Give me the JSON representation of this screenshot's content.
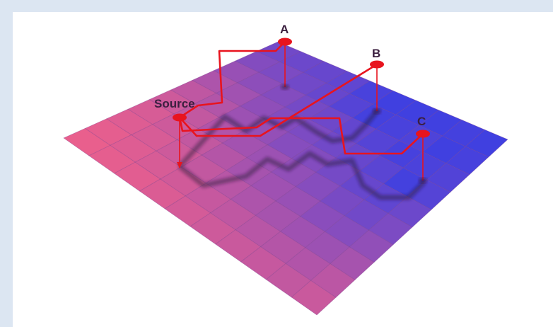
{
  "colors": {
    "page_background": "#dce6f2",
    "canvas_background": "#ffffff",
    "path_line": "#e8141e",
    "marker": "#e8141e",
    "label_text": "#3b1f3f",
    "low_cost_cell": "#f0608a",
    "high_cost_cell": "#4040e0"
  },
  "labels": {
    "source": "Source",
    "point_a": "A",
    "point_b": "B",
    "point_c": "C"
  },
  "grid": {
    "rows": 10,
    "cols": 10,
    "cost_values": [
      [
        0.72,
        0.75,
        0.78,
        0.82,
        0.95,
        1.0,
        1.0,
        1.0,
        0.98,
        1.0
      ],
      [
        0.62,
        0.66,
        0.72,
        0.78,
        0.88,
        0.98,
        0.95,
        0.92,
        1.0,
        0.96
      ],
      [
        0.5,
        0.56,
        0.62,
        0.7,
        0.74,
        0.8,
        0.88,
        0.96,
        0.94,
        0.9
      ],
      [
        0.38,
        0.45,
        0.55,
        0.62,
        0.66,
        0.72,
        0.78,
        0.85,
        0.98,
        0.88
      ],
      [
        0.28,
        0.35,
        0.48,
        0.52,
        0.6,
        0.62,
        0.7,
        0.78,
        0.82,
        0.75
      ],
      [
        0.2,
        0.26,
        0.36,
        0.44,
        0.48,
        0.54,
        0.6,
        0.68,
        0.72,
        0.66
      ],
      [
        0.14,
        0.2,
        0.26,
        0.34,
        0.42,
        0.46,
        0.5,
        0.58,
        0.6,
        0.54
      ],
      [
        0.1,
        0.14,
        0.2,
        0.26,
        0.32,
        0.38,
        0.42,
        0.46,
        0.48,
        0.42
      ],
      [
        0.06,
        0.1,
        0.14,
        0.18,
        0.24,
        0.28,
        0.32,
        0.34,
        0.36,
        0.3
      ],
      [
        0.04,
        0.06,
        0.08,
        0.12,
        0.16,
        0.2,
        0.22,
        0.24,
        0.26,
        0.22
      ]
    ]
  }
}
